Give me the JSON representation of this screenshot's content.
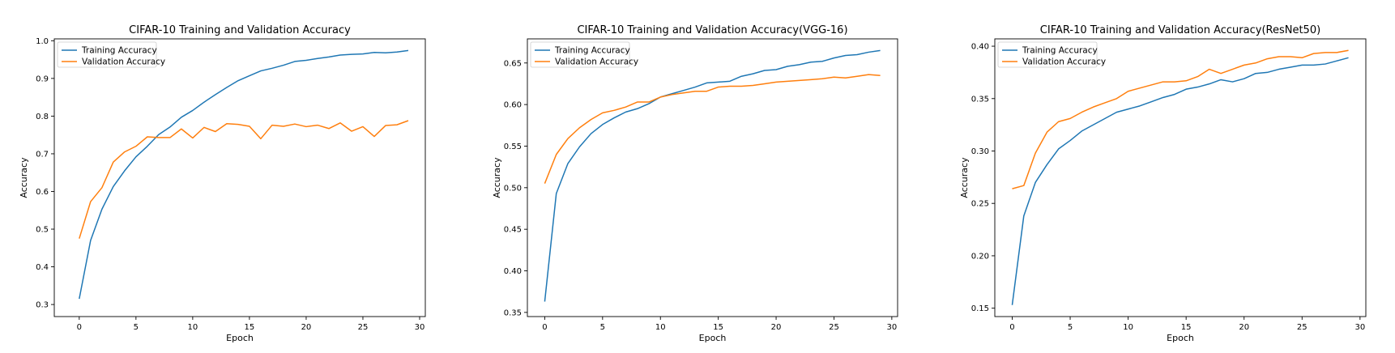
{
  "chart_data": [
    {
      "type": "line",
      "title": "CIFAR-10 Training and Validation Accuracy",
      "xlabel": "Epoch",
      "ylabel": "Accuracy",
      "xlim": [
        -2.2,
        30.5
      ],
      "ylim": [
        0.268,
        1.005
      ],
      "xticks": [
        0,
        5,
        10,
        15,
        20,
        25,
        30
      ],
      "yticks": [
        0.3,
        0.4,
        0.5,
        0.6,
        0.7,
        0.8,
        0.9,
        1.0
      ],
      "ytick_labels": [
        "0.3",
        "0.4",
        "0.5",
        "0.6",
        "0.7",
        "0.8",
        "0.9",
        "1.0"
      ],
      "legend": "upper-left",
      "grid": false,
      "x": [
        0,
        1,
        2,
        3,
        4,
        5,
        6,
        7,
        8,
        9,
        10,
        11,
        12,
        13,
        14,
        15,
        16,
        17,
        18,
        19,
        20,
        21,
        22,
        23,
        24,
        25,
        26,
        27,
        28,
        29
      ],
      "series": [
        {
          "name": "Training Accuracy",
          "color": "#1f77b4",
          "values": [
            0.315,
            0.47,
            0.553,
            0.613,
            0.655,
            0.692,
            0.72,
            0.751,
            0.771,
            0.797,
            0.815,
            0.837,
            0.857,
            0.876,
            0.894,
            0.907,
            0.92,
            0.927,
            0.935,
            0.945,
            0.948,
            0.953,
            0.957,
            0.962,
            0.964,
            0.965,
            0.969,
            0.968,
            0.97,
            0.974
          ]
        },
        {
          "name": "Validation Accuracy",
          "color": "#ff7f0e",
          "values": [
            0.475,
            0.573,
            0.61,
            0.678,
            0.705,
            0.72,
            0.745,
            0.743,
            0.743,
            0.766,
            0.742,
            0.77,
            0.759,
            0.78,
            0.778,
            0.773,
            0.74,
            0.776,
            0.773,
            0.779,
            0.772,
            0.776,
            0.767,
            0.782,
            0.76,
            0.772,
            0.746,
            0.775,
            0.777,
            0.788
          ]
        }
      ]
    },
    {
      "type": "line",
      "title": "CIFAR-10 Training and Validation Accuracy(VGG-16)",
      "xlabel": "Epoch",
      "ylabel": "Accuracy",
      "xlim": [
        -1.5,
        30.5
      ],
      "ylim": [
        0.345,
        0.679
      ],
      "xticks": [
        0,
        5,
        10,
        15,
        20,
        25,
        30
      ],
      "yticks": [
        0.35,
        0.4,
        0.45,
        0.5,
        0.55,
        0.6,
        0.65
      ],
      "ytick_labels": [
        "0.35",
        "0.40",
        "0.45",
        "0.50",
        "0.55",
        "0.60",
        "0.65"
      ],
      "legend": "upper-left",
      "grid": false,
      "x": [
        0,
        1,
        2,
        3,
        4,
        5,
        6,
        7,
        8,
        9,
        10,
        11,
        12,
        13,
        14,
        15,
        16,
        17,
        18,
        19,
        20,
        21,
        22,
        23,
        24,
        25,
        26,
        27,
        28,
        29
      ],
      "series": [
        {
          "name": "Training Accuracy",
          "color": "#1f77b4",
          "values": [
            0.363,
            0.493,
            0.529,
            0.549,
            0.565,
            0.576,
            0.584,
            0.591,
            0.595,
            0.601,
            0.609,
            0.613,
            0.617,
            0.621,
            0.626,
            0.627,
            0.628,
            0.634,
            0.637,
            0.641,
            0.642,
            0.646,
            0.648,
            0.651,
            0.652,
            0.656,
            0.659,
            0.66,
            0.663,
            0.665
          ]
        },
        {
          "name": "Validation Accuracy",
          "color": "#ff7f0e",
          "values": [
            0.505,
            0.54,
            0.559,
            0.572,
            0.582,
            0.59,
            0.593,
            0.597,
            0.603,
            0.603,
            0.609,
            0.612,
            0.614,
            0.616,
            0.616,
            0.621,
            0.622,
            0.622,
            0.623,
            0.625,
            0.627,
            0.628,
            0.629,
            0.63,
            0.631,
            0.633,
            0.632,
            0.634,
            0.636,
            0.635
          ]
        }
      ]
    },
    {
      "type": "line",
      "title": "CIFAR-10 Training and Validation Accuracy(ResNet50)",
      "xlabel": "Epoch",
      "ylabel": "Accuracy",
      "xlim": [
        -1.5,
        30.5
      ],
      "ylim": [
        0.142,
        0.407
      ],
      "xticks": [
        0,
        5,
        10,
        15,
        20,
        25,
        30
      ],
      "yticks": [
        0.15,
        0.2,
        0.25,
        0.3,
        0.35,
        0.4
      ],
      "ytick_labels": [
        "0.15",
        "0.20",
        "0.25",
        "0.30",
        "0.35",
        "0.40"
      ],
      "legend": "upper-left",
      "grid": false,
      "x": [
        0,
        1,
        2,
        3,
        4,
        5,
        6,
        7,
        8,
        9,
        10,
        11,
        12,
        13,
        14,
        15,
        16,
        17,
        18,
        19,
        20,
        21,
        22,
        23,
        24,
        25,
        26,
        27,
        28,
        29
      ],
      "series": [
        {
          "name": "Training Accuracy",
          "color": "#1f77b4",
          "values": [
            0.153,
            0.238,
            0.27,
            0.287,
            0.302,
            0.31,
            0.319,
            0.325,
            0.331,
            0.337,
            0.34,
            0.343,
            0.347,
            0.351,
            0.354,
            0.359,
            0.361,
            0.364,
            0.368,
            0.366,
            0.369,
            0.374,
            0.375,
            0.378,
            0.38,
            0.382,
            0.382,
            0.383,
            0.386,
            0.389
          ]
        },
        {
          "name": "Validation Accuracy",
          "color": "#ff7f0e",
          "values": [
            0.264,
            0.267,
            0.298,
            0.318,
            0.328,
            0.331,
            0.337,
            0.342,
            0.346,
            0.35,
            0.357,
            0.36,
            0.363,
            0.366,
            0.366,
            0.367,
            0.371,
            0.378,
            0.374,
            0.378,
            0.382,
            0.384,
            0.388,
            0.39,
            0.39,
            0.389,
            0.393,
            0.394,
            0.394,
            0.396
          ]
        }
      ]
    }
  ]
}
